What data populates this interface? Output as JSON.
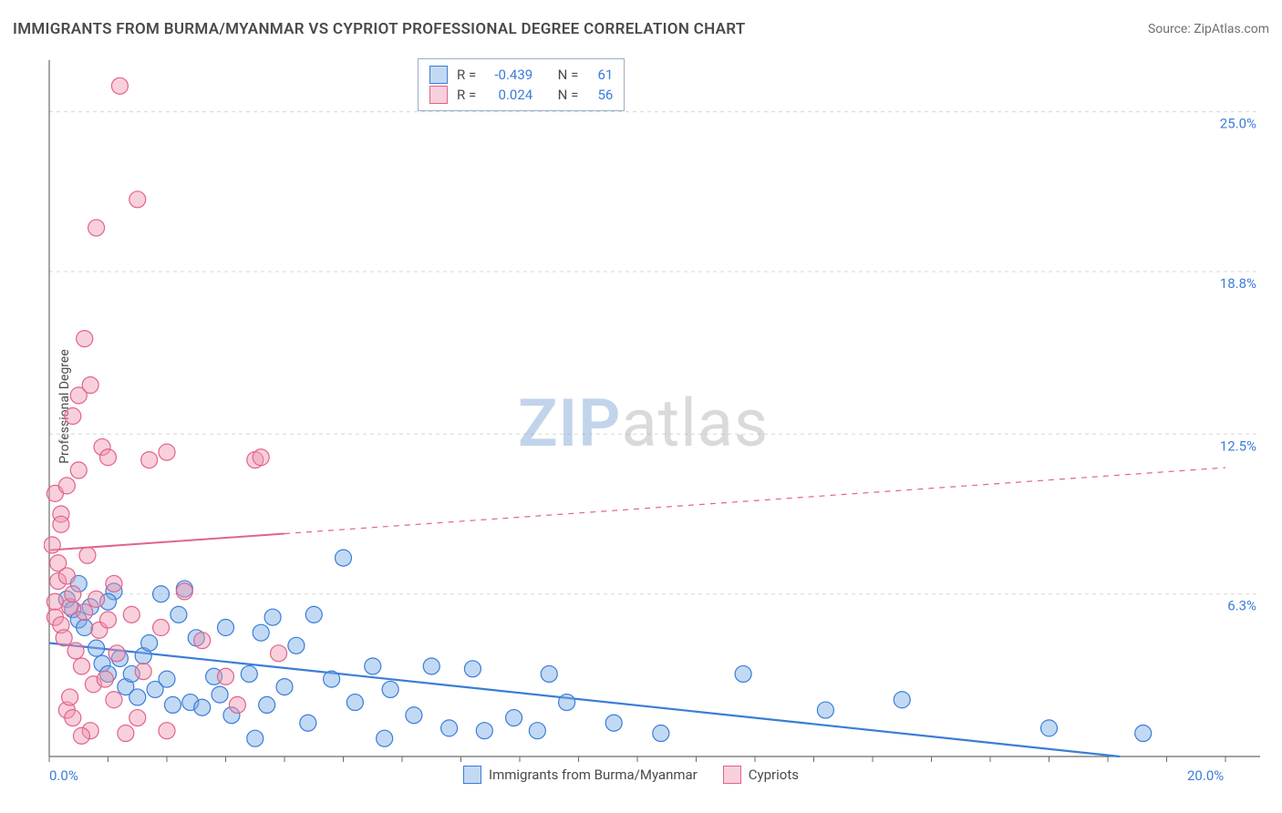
{
  "header": {
    "title": "IMMIGRANTS FROM BURMA/MYANMAR VS CYPRIOT PROFESSIONAL DEGREE CORRELATION CHART",
    "source": "Source: ZipAtlas.com"
  },
  "ylabel": "Professional Degree",
  "watermark": {
    "left": "ZIP",
    "right": "atlas"
  },
  "series": [
    {
      "name": "Immigrants from Burma/Myanmar",
      "color_fill": "rgba(120,170,230,0.45)",
      "color_stroke": "#3b7dd8",
      "R": "-0.439",
      "N": "61",
      "regression": {
        "x1": 0.0,
        "y1": 4.4,
        "x2": 18.2,
        "y2": 0.0,
        "dashed": false
      },
      "points": [
        [
          0.3,
          6.1
        ],
        [
          0.4,
          5.7
        ],
        [
          0.5,
          5.3
        ],
        [
          0.6,
          5.0
        ],
        [
          0.7,
          5.8
        ],
        [
          0.8,
          4.2
        ],
        [
          0.9,
          3.6
        ],
        [
          1.0,
          3.2
        ],
        [
          1.1,
          6.4
        ],
        [
          1.2,
          3.8
        ],
        [
          1.3,
          2.7
        ],
        [
          1.4,
          3.2
        ],
        [
          1.5,
          2.3
        ],
        [
          1.6,
          3.9
        ],
        [
          1.7,
          4.4
        ],
        [
          1.8,
          2.6
        ],
        [
          1.9,
          6.3
        ],
        [
          2.0,
          3.0
        ],
        [
          2.1,
          2.0
        ],
        [
          2.2,
          5.5
        ],
        [
          2.4,
          2.1
        ],
        [
          2.5,
          4.6
        ],
        [
          2.6,
          1.9
        ],
        [
          2.8,
          3.1
        ],
        [
          2.9,
          2.4
        ],
        [
          3.0,
          5.0
        ],
        [
          3.1,
          1.6
        ],
        [
          3.4,
          3.2
        ],
        [
          3.5,
          0.7
        ],
        [
          3.6,
          4.8
        ],
        [
          3.7,
          2.0
        ],
        [
          3.8,
          5.4
        ],
        [
          4.0,
          2.7
        ],
        [
          4.2,
          4.3
        ],
        [
          4.4,
          1.3
        ],
        [
          4.5,
          5.5
        ],
        [
          4.8,
          3.0
        ],
        [
          5.0,
          7.7
        ],
        [
          5.2,
          2.1
        ],
        [
          5.5,
          3.5
        ],
        [
          5.7,
          0.7
        ],
        [
          5.8,
          2.6
        ],
        [
          6.2,
          1.6
        ],
        [
          6.5,
          3.5
        ],
        [
          6.8,
          1.1
        ],
        [
          7.2,
          3.4
        ],
        [
          7.4,
          1.0
        ],
        [
          7.9,
          1.5
        ],
        [
          8.3,
          1.0
        ],
        [
          8.5,
          3.2
        ],
        [
          8.8,
          2.1
        ],
        [
          9.6,
          1.3
        ],
        [
          10.4,
          0.9
        ],
        [
          11.8,
          3.2
        ],
        [
          13.2,
          1.8
        ],
        [
          14.5,
          2.2
        ],
        [
          17.0,
          1.1
        ],
        [
          18.6,
          0.9
        ],
        [
          1.0,
          6.0
        ],
        [
          2.3,
          6.5
        ],
        [
          0.5,
          6.7
        ]
      ]
    },
    {
      "name": "Cypriots",
      "color_fill": "rgba(240,150,175,0.45)",
      "color_stroke": "#e2638b",
      "R": "0.024",
      "N": "56",
      "regression": {
        "x1": 0.0,
        "y1": 8.0,
        "x2": 20.0,
        "y2": 11.2,
        "dashed_from_x": 4.0
      },
      "points": [
        [
          0.05,
          8.2
        ],
        [
          0.1,
          6.0
        ],
        [
          0.1,
          5.4
        ],
        [
          0.1,
          10.2
        ],
        [
          0.15,
          6.8
        ],
        [
          0.15,
          7.5
        ],
        [
          0.2,
          5.1
        ],
        [
          0.2,
          9.4
        ],
        [
          0.2,
          9.0
        ],
        [
          0.25,
          4.6
        ],
        [
          0.3,
          10.5
        ],
        [
          0.3,
          7.0
        ],
        [
          0.35,
          5.8
        ],
        [
          0.4,
          6.3
        ],
        [
          0.4,
          13.2
        ],
        [
          0.45,
          4.1
        ],
        [
          0.5,
          14.0
        ],
        [
          0.5,
          11.1
        ],
        [
          0.55,
          3.5
        ],
        [
          0.6,
          16.2
        ],
        [
          0.6,
          5.6
        ],
        [
          0.65,
          7.8
        ],
        [
          0.7,
          14.4
        ],
        [
          0.75,
          2.8
        ],
        [
          0.8,
          20.5
        ],
        [
          0.8,
          6.1
        ],
        [
          0.85,
          4.9
        ],
        [
          0.9,
          12.0
        ],
        [
          0.95,
          3.0
        ],
        [
          1.0,
          11.6
        ],
        [
          1.0,
          5.3
        ],
        [
          1.1,
          2.2
        ],
        [
          1.1,
          6.7
        ],
        [
          1.15,
          4.0
        ],
        [
          1.2,
          26.0
        ],
        [
          1.4,
          5.5
        ],
        [
          1.5,
          1.5
        ],
        [
          1.5,
          21.6
        ],
        [
          1.6,
          3.3
        ],
        [
          1.7,
          11.5
        ],
        [
          1.9,
          5.0
        ],
        [
          2.0,
          1.0
        ],
        [
          2.0,
          11.8
        ],
        [
          2.3,
          6.4
        ],
        [
          2.6,
          4.5
        ],
        [
          3.0,
          3.1
        ],
        [
          3.2,
          2.0
        ],
        [
          3.5,
          11.5
        ],
        [
          3.6,
          11.6
        ],
        [
          3.9,
          4.0
        ],
        [
          0.3,
          1.8
        ],
        [
          0.35,
          2.3
        ],
        [
          0.4,
          1.5
        ],
        [
          0.7,
          1.0
        ],
        [
          0.55,
          0.8
        ],
        [
          1.3,
          0.9
        ]
      ]
    }
  ],
  "chart": {
    "xlim": [
      0,
      20
    ],
    "ylim": [
      0,
      27
    ],
    "x_axis_labels": [
      {
        "value": 0,
        "text": "0.0%"
      },
      {
        "value": 20,
        "text": "20.0%"
      }
    ],
    "y_grid": [
      {
        "value": 6.3,
        "text": "6.3%"
      },
      {
        "value": 12.5,
        "text": "12.5%"
      },
      {
        "value": 18.8,
        "text": "18.8%"
      },
      {
        "value": 25.0,
        "text": "25.0%"
      }
    ],
    "x_ticks": [
      0,
      1,
      2,
      3,
      4,
      5,
      6,
      7,
      8,
      9,
      10,
      11,
      12,
      13,
      14,
      15,
      16,
      17,
      18,
      19,
      20
    ],
    "axis_color": "#6b6b6b",
    "grid_color": "#d8d8d8",
    "tick_label_color": "#3b7dd8",
    "marker_radius": 9,
    "background": "#ffffff"
  },
  "legend_labels": {
    "R": "R =",
    "N": "N ="
  }
}
